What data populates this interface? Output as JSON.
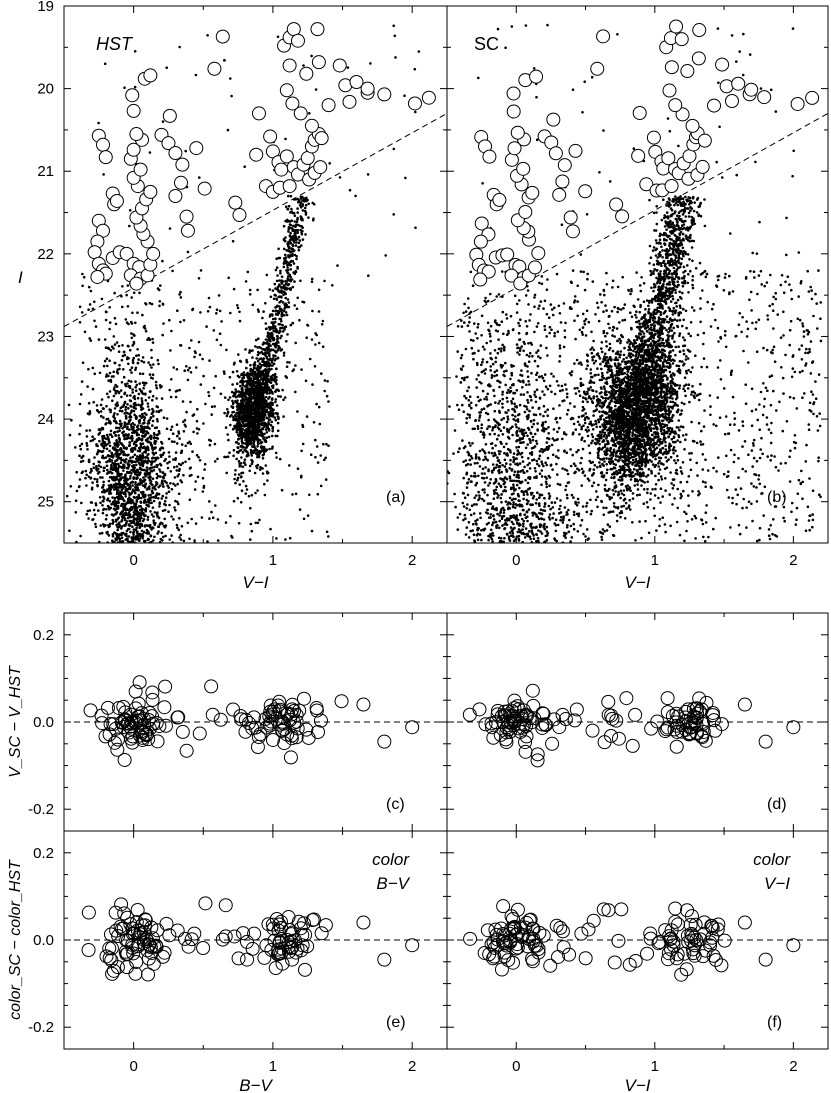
{
  "figure": {
    "colors": {
      "ink": "#000000",
      "marker_face": "#ffffff",
      "background": "#ffffff"
    }
  },
  "chart_data": [
    {
      "panel": "(a)",
      "type": "scatter",
      "title": "HST",
      "xlabel": "V−I",
      "ylabel": "I",
      "xlim": [
        -0.5,
        2.25
      ],
      "ylim": [
        25.5,
        19
      ],
      "y_inverted": true,
      "xticks": [
        "0",
        "1",
        "2"
      ],
      "yticks": [
        "19",
        "20",
        "21",
        "22",
        "23",
        "24",
        "25"
      ],
      "panel_label": "(a)",
      "grid": false,
      "reference_line": {
        "style": "dashed",
        "points": [
          [
            -0.5,
            22.88
          ],
          [
            2.25,
            20.3
          ]
        ]
      },
      "series": [
        {
          "marker": "dot",
          "description_points": "field stars (dense distribution)"
        },
        {
          "marker": "open-circle",
          "points": [
            [
              -0.25,
              20.57
            ],
            [
              -0.22,
              20.68
            ],
            [
              -0.2,
              20.83
            ],
            [
              -0.15,
              21.27
            ],
            [
              -0.14,
              21.4
            ],
            [
              -0.12,
              21.36
            ],
            [
              -0.25,
              21.6
            ],
            [
              -0.22,
              21.72
            ],
            [
              -0.26,
              21.85
            ],
            [
              -0.28,
              21.98
            ],
            [
              -0.25,
              22.12
            ],
            [
              -0.22,
              22.2
            ],
            [
              -0.2,
              22.24
            ],
            [
              -0.26,
              22.28
            ],
            [
              -0.15,
              22.05
            ],
            [
              -0.1,
              21.98
            ],
            [
              -0.05,
              22.0
            ],
            [
              0.0,
              22.12
            ],
            [
              0.04,
              22.16
            ],
            [
              -0.02,
              22.26
            ],
            [
              0.05,
              22.3
            ],
            [
              0.02,
              22.36
            ],
            [
              0.1,
              22.26
            ],
            [
              0.12,
              22.13
            ],
            [
              0.14,
              22.0
            ],
            [
              0.1,
              21.85
            ],
            [
              0.07,
              21.76
            ],
            [
              0.05,
              21.66
            ],
            [
              0.02,
              21.56
            ],
            [
              0.06,
              21.45
            ],
            [
              0.09,
              21.34
            ],
            [
              0.12,
              21.25
            ],
            [
              0.03,
              21.18
            ],
            [
              0.0,
              21.08
            ],
            [
              0.05,
              20.98
            ],
            [
              -0.02,
              20.85
            ],
            [
              0.0,
              20.74
            ],
            [
              0.06,
              20.62
            ],
            [
              0.02,
              20.55
            ],
            [
              0.0,
              20.27
            ],
            [
              -0.01,
              20.08
            ],
            [
              0.08,
              19.88
            ],
            [
              0.12,
              19.84
            ],
            [
              0.26,
              20.33
            ],
            [
              0.2,
              20.56
            ],
            [
              0.25,
              20.66
            ],
            [
              0.3,
              20.78
            ],
            [
              0.35,
              20.92
            ],
            [
              0.34,
              21.14
            ],
            [
              0.3,
              21.3
            ],
            [
              0.38,
              21.55
            ],
            [
              0.39,
              21.72
            ],
            [
              0.45,
              20.72
            ],
            [
              0.51,
              21.21
            ],
            [
              0.58,
              19.76
            ],
            [
              0.64,
              19.37
            ],
            [
              0.73,
              21.38
            ],
            [
              0.76,
              21.53
            ],
            [
              0.9,
              20.3
            ],
            [
              0.88,
              20.8
            ],
            [
              0.98,
              20.58
            ],
            [
              1.0,
              20.76
            ],
            [
              1.04,
              20.89
            ],
            [
              1.06,
              20.98
            ],
            [
              1.1,
              20.82
            ],
            [
              1.15,
              20.95
            ],
            [
              1.18,
              21.04
            ],
            [
              1.22,
              20.92
            ],
            [
              1.25,
              20.84
            ],
            [
              1.28,
              20.7
            ],
            [
              1.3,
              20.62
            ],
            [
              1.33,
              20.55
            ],
            [
              1.35,
              20.6
            ],
            [
              1.28,
              20.45
            ],
            [
              1.2,
              20.3
            ],
            [
              1.14,
              20.18
            ],
            [
              1.1,
              20.02
            ],
            [
              1.12,
              19.72
            ],
            [
              1.08,
              19.48
            ],
            [
              1.12,
              19.38
            ],
            [
              1.15,
              19.28
            ],
            [
              1.18,
              19.42
            ],
            [
              1.24,
              19.82
            ],
            [
              1.32,
              19.28
            ],
            [
              1.33,
              19.68
            ],
            [
              1.4,
              20.2
            ],
            [
              1.48,
              19.72
            ],
            [
              1.52,
              19.96
            ],
            [
              1.55,
              20.16
            ],
            [
              1.6,
              19.92
            ],
            [
              1.68,
              20.05
            ],
            [
              1.68,
              20.0
            ],
            [
              1.8,
              20.07
            ],
            [
              2.02,
              20.18
            ],
            [
              2.12,
              20.11
            ],
            [
              0.95,
              21.18
            ],
            [
              1.0,
              21.25
            ],
            [
              1.05,
              21.2
            ],
            [
              1.12,
              21.18
            ],
            [
              1.26,
              21.1
            ],
            [
              1.3,
              21.02
            ],
            [
              1.34,
              20.95
            ]
          ]
        }
      ]
    },
    {
      "panel": "(b)",
      "type": "scatter",
      "title": "SC",
      "xlabel": "V−I",
      "xlim": [
        -0.5,
        2.25
      ],
      "ylim": [
        25.5,
        19
      ],
      "y_inverted": true,
      "xticks": [
        "0",
        "1",
        "2"
      ],
      "panel_label": "(b)",
      "grid": false,
      "reference_line": {
        "style": "dashed",
        "points": [
          [
            -0.5,
            22.88
          ],
          [
            2.25,
            20.3
          ]
        ]
      },
      "series": [
        {
          "marker": "dot",
          "description_points": "field stars (dense distribution)"
        },
        {
          "marker": "open-circle",
          "points": "same stars as panel (a) at SC photometry"
        }
      ]
    },
    {
      "panel": "(c)",
      "type": "scatter",
      "xlabel": "B−V",
      "ylabel": "V_SC − V_HST",
      "xlim": [
        -0.5,
        2.25
      ],
      "ylim": [
        -0.25,
        0.25
      ],
      "xticks": [
        "0",
        "1",
        "2"
      ],
      "yticks": [
        "-0.2",
        "0.0",
        "0.2"
      ],
      "panel_label": "(c)",
      "reference_line": {
        "style": "dashed",
        "y": 0
      },
      "series": [
        {
          "marker": "open-circle",
          "points": "difference values scattered around 0, roughly -0.07 to 0.07"
        }
      ]
    },
    {
      "panel": "(d)",
      "type": "scatter",
      "xlabel": "V−I",
      "xlim": [
        -0.5,
        2.25
      ],
      "ylim": [
        -0.25,
        0.25
      ],
      "xticks": [
        "0",
        "1",
        "2"
      ],
      "panel_label": "(d)",
      "reference_line": {
        "style": "dashed",
        "y": 0
      },
      "series": [
        {
          "marker": "open-circle",
          "points": "difference values scattered around 0, roughly -0.07 to 0.07"
        }
      ]
    },
    {
      "panel": "(e)",
      "type": "scatter",
      "xlabel": "B−V",
      "ylabel": "color_SC − color_HST",
      "annotation": [
        "color",
        "B−V"
      ],
      "xlim": [
        -0.5,
        2.25
      ],
      "ylim": [
        -0.25,
        0.25
      ],
      "xticks": [
        "0",
        "1",
        "2"
      ],
      "yticks": [
        "-0.2",
        "0.0",
        "0.2"
      ],
      "panel_label": "(e)",
      "reference_line": {
        "style": "dashed",
        "y": 0
      },
      "series": [
        {
          "marker": "open-circle",
          "points": "color differences around 0, roughly -0.1 to 0.12"
        }
      ]
    },
    {
      "panel": "(f)",
      "type": "scatter",
      "xlabel": "V−I",
      "annotation": [
        "color",
        "V−I"
      ],
      "xlim": [
        -0.5,
        2.25
      ],
      "ylim": [
        -0.25,
        0.25
      ],
      "xticks": [
        "0",
        "1",
        "2"
      ],
      "panel_label": "(f)",
      "reference_line": {
        "style": "dashed",
        "y": 0
      },
      "series": [
        {
          "marker": "open-circle",
          "points": "color differences around 0, roughly -0.09 to 0.11"
        }
      ]
    }
  ]
}
